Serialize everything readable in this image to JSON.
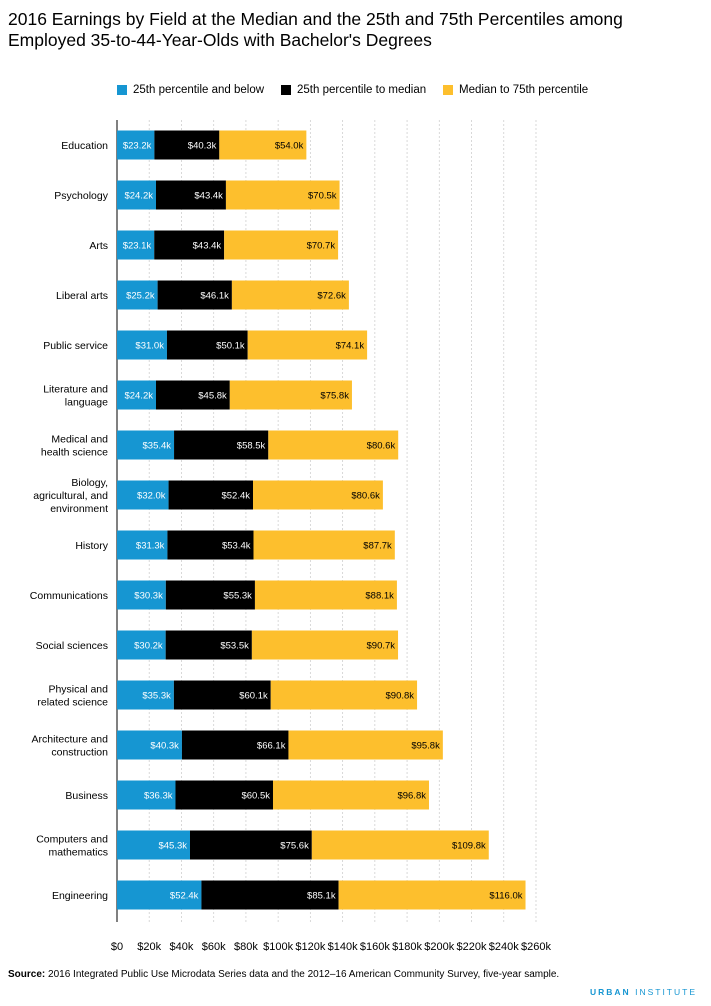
{
  "header": {
    "title": "2016 Earnings by Field at the Median and the 25th and 75th Percentiles among Employed 35-to-44-Year-Olds with Bachelor's Degrees"
  },
  "legend": {
    "items": [
      {
        "label": "25th percentile and below",
        "color": "#1696d2"
      },
      {
        "label": "25th percentile to median",
        "color": "#000000"
      },
      {
        "label": "Median to 75th percentile",
        "color": "#fdbf2d"
      }
    ]
  },
  "footer": {
    "source_label": "Source:",
    "source_text": "2016 Integrated Public Use Microdata Series data and the 2012–16 American Community Survey, five-year sample.",
    "brand_a": "URBAN",
    "brand_b": "INSTITUTE"
  },
  "chart_data": {
    "type": "bar",
    "orientation": "horizontal",
    "stacked": true,
    "categories": [
      "Education",
      "Psychology",
      "Arts",
      "Liberal arts",
      "Public service",
      "Literature and language",
      "Medical and health science",
      "Biology, agricultural, and environment",
      "History",
      "Communications",
      "Social sciences",
      "Physical and related science",
      "Architecture and construction",
      "Business",
      "Computers and mathematics",
      "Engineering"
    ],
    "category_lines": [
      [
        "Education"
      ],
      [
        "Psychology"
      ],
      [
        "Arts"
      ],
      [
        "Liberal arts"
      ],
      [
        "Public service"
      ],
      [
        "Literature and",
        "language"
      ],
      [
        "Medical and",
        "health science"
      ],
      [
        "Biology,",
        "agricultural, and",
        "environment"
      ],
      [
        "History"
      ],
      [
        "Communications"
      ],
      [
        "Social sciences"
      ],
      [
        "Physical and",
        "related science"
      ],
      [
        "Architecture and",
        "construction"
      ],
      [
        "Business"
      ],
      [
        "Computers and",
        "mathematics"
      ],
      [
        "Engineering"
      ]
    ],
    "series": [
      {
        "name": "25th percentile and below",
        "color": "#1696d2",
        "label_color": "#ffffff",
        "values": [
          23.2,
          24.2,
          23.1,
          25.2,
          31.0,
          24.2,
          35.4,
          32.0,
          31.3,
          30.3,
          30.2,
          35.3,
          40.3,
          36.3,
          45.3,
          52.4
        ]
      },
      {
        "name": "25th percentile to median",
        "color": "#000000",
        "label_color": "#ffffff",
        "values": [
          40.3,
          43.4,
          43.4,
          46.1,
          50.1,
          45.8,
          58.5,
          52.4,
          53.4,
          55.3,
          53.5,
          60.1,
          66.1,
          60.5,
          75.6,
          85.1
        ]
      },
      {
        "name": "Median to 75th percentile",
        "color": "#fdbf2d",
        "label_color": "#000000",
        "values": [
          54.0,
          70.5,
          70.7,
          72.6,
          74.1,
          75.8,
          80.6,
          80.6,
          87.7,
          88.1,
          90.7,
          90.8,
          95.8,
          96.8,
          109.8,
          116.0
        ]
      }
    ],
    "value_labels": [
      [
        "$23.2k",
        "$24.2k",
        "$23.1k",
        "$25.2k",
        "$31.0k",
        "$24.2k",
        "$35.4k",
        "$32.0k",
        "$31.3k",
        "$30.3k",
        "$30.2k",
        "$35.3k",
        "$40.3k",
        "$36.3k",
        "$45.3k",
        "$52.4k"
      ],
      [
        "$40.3k",
        "$43.4k",
        "$43.4k",
        "$46.1k",
        "$50.1k",
        "$45.8k",
        "$58.5k",
        "$52.4k",
        "$53.4k",
        "$55.3k",
        "$53.5k",
        "$60.1k",
        "$66.1k",
        "$60.5k",
        "$75.6k",
        "$85.1k"
      ],
      [
        "$54.0k",
        "$70.5k",
        "$70.7k",
        "$72.6k",
        "$74.1k",
        "$75.8k",
        "$80.6k",
        "$80.6k",
        "$87.7k",
        "$88.1k",
        "$90.7k",
        "$90.8k",
        "$95.8k",
        "$96.8k",
        "$109.8k",
        "$116.0k"
      ]
    ],
    "x_ticks": [
      0,
      20,
      40,
      60,
      80,
      100,
      120,
      140,
      160,
      180,
      200,
      220,
      240,
      260
    ],
    "x_tick_labels": [
      "$0",
      "$20k",
      "$40k",
      "$60k",
      "$80k",
      "$100k",
      "$120k",
      "$140k",
      "$160k",
      "$180k",
      "$200k",
      "$220k",
      "$240k",
      "$260k"
    ],
    "xlim": [
      0,
      260
    ],
    "unit": "thousands of dollars",
    "grid": "vertical dashed",
    "legend_position": "top"
  }
}
